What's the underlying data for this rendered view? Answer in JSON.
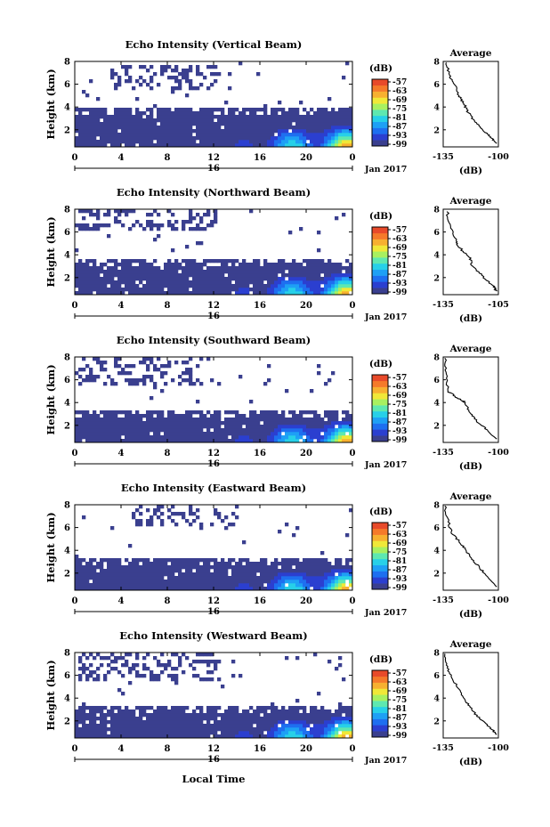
{
  "figure": {
    "date_label": "Jan 2017",
    "day_label": "16",
    "xlabel": "Local Time",
    "units_label": "(dB)"
  },
  "colorbar": {
    "ticks": [
      "-57",
      "-63",
      "-69",
      "-75",
      "-81",
      "-87",
      "-93",
      "-99"
    ],
    "colors": [
      "#3a3f8f",
      "#2b3fd0",
      "#1e6ff0",
      "#1ea0f5",
      "#27d0e8",
      "#5ee8b0",
      "#a8f060",
      "#f0e838",
      "#f7b030",
      "#f57a2a",
      "#e84a2a"
    ]
  },
  "chart_data": [
    {
      "type": "heatmap",
      "title": "Echo Intensity (Vertical Beam)",
      "ylabel": "Height (km)",
      "x_ticks": [
        "0",
        "4",
        "8",
        "12",
        "16",
        "20",
        "0"
      ],
      "y_ticks": [
        "2",
        "4",
        "6",
        "8"
      ],
      "xlim": [
        0,
        24
      ],
      "ylim": [
        0.5,
        8
      ],
      "color_range_dB": [
        -99,
        -57
      ],
      "low_echo_top_km": 3.8,
      "upper_patches_km": [
        [
          5.6,
          7.6
        ]
      ],
      "upper_patch_hours": [
        [
          3,
          12.5
        ]
      ],
      "avg_profile": {
        "title": "Average",
        "xlabel": "(dB)",
        "x_ticks": [
          "-135",
          "-100"
        ],
        "xlim": [
          -135,
          -100
        ],
        "y_ticks": [
          "2",
          "4",
          "6",
          "8"
        ],
        "ylim": [
          0.5,
          8
        ],
        "points": [
          [
            -133,
            7.9
          ],
          [
            -131,
            6.8
          ],
          [
            -128,
            6.0
          ],
          [
            -125,
            5.0
          ],
          [
            -122,
            4.3
          ],
          [
            -119,
            3.5
          ],
          [
            -115,
            2.7
          ],
          [
            -110,
            2.0
          ],
          [
            -105,
            1.4
          ],
          [
            -101,
            0.8
          ]
        ]
      }
    },
    {
      "type": "heatmap",
      "title": "Echo Intensity (Northward Beam)",
      "ylabel": "Height (km)",
      "x_ticks": [
        "0",
        "4",
        "8",
        "12",
        "16",
        "20",
        "0"
      ],
      "y_ticks": [
        "2",
        "4",
        "6",
        "8"
      ],
      "xlim": [
        0,
        24
      ],
      "ylim": [
        0.5,
        8
      ],
      "color_range_dB": [
        -99,
        -57
      ],
      "low_echo_top_km": 3.6,
      "upper_patches_km": [
        [
          6.0,
          8.0
        ]
      ],
      "upper_patch_hours": [
        [
          0,
          12.5
        ]
      ],
      "avg_profile": {
        "title": "Average",
        "xlabel": "(dB)",
        "x_ticks": [
          "-135",
          "-105"
        ],
        "xlim": [
          -135,
          -105
        ],
        "y_ticks": [
          "2",
          "4",
          "6",
          "8"
        ],
        "ylim": [
          0.5,
          8
        ],
        "points": [
          [
            -133,
            7.8
          ],
          [
            -131,
            6.5
          ],
          [
            -128,
            5.2
          ],
          [
            -126,
            4.6
          ],
          [
            -121,
            3.8
          ],
          [
            -119,
            3.0
          ],
          [
            -114,
            2.2
          ],
          [
            -108,
            1.3
          ],
          [
            -106,
            0.8
          ]
        ]
      }
    },
    {
      "type": "heatmap",
      "title": "Echo Intensity (Southward Beam)",
      "ylabel": "Height (km)",
      "x_ticks": [
        "0",
        "4",
        "8",
        "12",
        "16",
        "20",
        "0"
      ],
      "y_ticks": [
        "2",
        "4",
        "6",
        "8"
      ],
      "xlim": [
        0,
        24
      ],
      "ylim": [
        0.5,
        8
      ],
      "color_range_dB": [
        -99,
        -57
      ],
      "low_echo_top_km": 3.2,
      "upper_patches_km": [
        [
          5.5,
          8.0
        ]
      ],
      "upper_patch_hours": [
        [
          0,
          11
        ]
      ],
      "avg_profile": {
        "title": "Average",
        "xlabel": "(dB)",
        "x_ticks": [
          "-135",
          "-100"
        ],
        "xlim": [
          -135,
          -100
        ],
        "y_ticks": [
          "2",
          "4",
          "6",
          "8"
        ],
        "ylim": [
          0.5,
          8
        ],
        "points": [
          [
            -134,
            7.9
          ],
          [
            -133,
            6.5
          ],
          [
            -132,
            5.0
          ],
          [
            -126,
            4.4
          ],
          [
            -121,
            4.0
          ],
          [
            -118,
            3.1
          ],
          [
            -114,
            2.4
          ],
          [
            -107,
            1.6
          ],
          [
            -101,
            0.8
          ]
        ]
      }
    },
    {
      "type": "heatmap",
      "title": "Echo Intensity (Eastward Beam)",
      "ylabel": "Height (km)",
      "x_ticks": [
        "0",
        "4",
        "8",
        "12",
        "16",
        "20",
        "0"
      ],
      "y_ticks": [
        "2",
        "4",
        "6",
        "8"
      ],
      "xlim": [
        0,
        24
      ],
      "ylim": [
        0.5,
        8
      ],
      "color_range_dB": [
        -99,
        -57
      ],
      "low_echo_top_km": 3.3,
      "upper_patches_km": [
        [
          6.0,
          8.0
        ]
      ],
      "upper_patch_hours": [
        [
          5,
          14
        ]
      ],
      "avg_profile": {
        "title": "Average",
        "xlabel": "(dB)",
        "x_ticks": [
          "-135",
          "-100"
        ],
        "xlim": [
          -135,
          -100
        ],
        "y_ticks": [
          "2",
          "4",
          "6",
          "8"
        ],
        "ylim": [
          0.5,
          8
        ],
        "points": [
          [
            -134,
            7.9
          ],
          [
            -132,
            6.8
          ],
          [
            -130,
            5.6
          ],
          [
            -125,
            4.8
          ],
          [
            -121,
            4.1
          ],
          [
            -117,
            3.3
          ],
          [
            -112,
            2.5
          ],
          [
            -107,
            1.7
          ],
          [
            -101,
            0.8
          ]
        ]
      }
    },
    {
      "type": "heatmap",
      "title": "Echo Intensity (Westward Beam)",
      "ylabel": "Height (km)",
      "x_ticks": [
        "0",
        "4",
        "8",
        "12",
        "16",
        "20",
        "0"
      ],
      "y_ticks": [
        "2",
        "4",
        "6",
        "8"
      ],
      "xlim": [
        0,
        24
      ],
      "ylim": [
        0.5,
        8
      ],
      "color_range_dB": [
        -99,
        -57
      ],
      "low_echo_top_km": 3.4,
      "upper_patches_km": [
        [
          5.5,
          8.0
        ]
      ],
      "upper_patch_hours": [
        [
          0,
          12.5
        ]
      ],
      "avg_profile": {
        "title": "Average",
        "xlabel": "(dB)",
        "x_ticks": [
          "-135",
          "-100"
        ],
        "xlim": [
          -135,
          -100
        ],
        "y_ticks": [
          "2",
          "4",
          "6",
          "8"
        ],
        "ylim": [
          0.5,
          8
        ],
        "points": [
          [
            -134,
            7.9
          ],
          [
            -133,
            6.9
          ],
          [
            -130,
            5.9
          ],
          [
            -125,
            4.8
          ],
          [
            -121,
            3.8
          ],
          [
            -117,
            3.0
          ],
          [
            -112,
            2.2
          ],
          [
            -106,
            1.5
          ],
          [
            -101,
            0.8
          ]
        ]
      }
    }
  ]
}
